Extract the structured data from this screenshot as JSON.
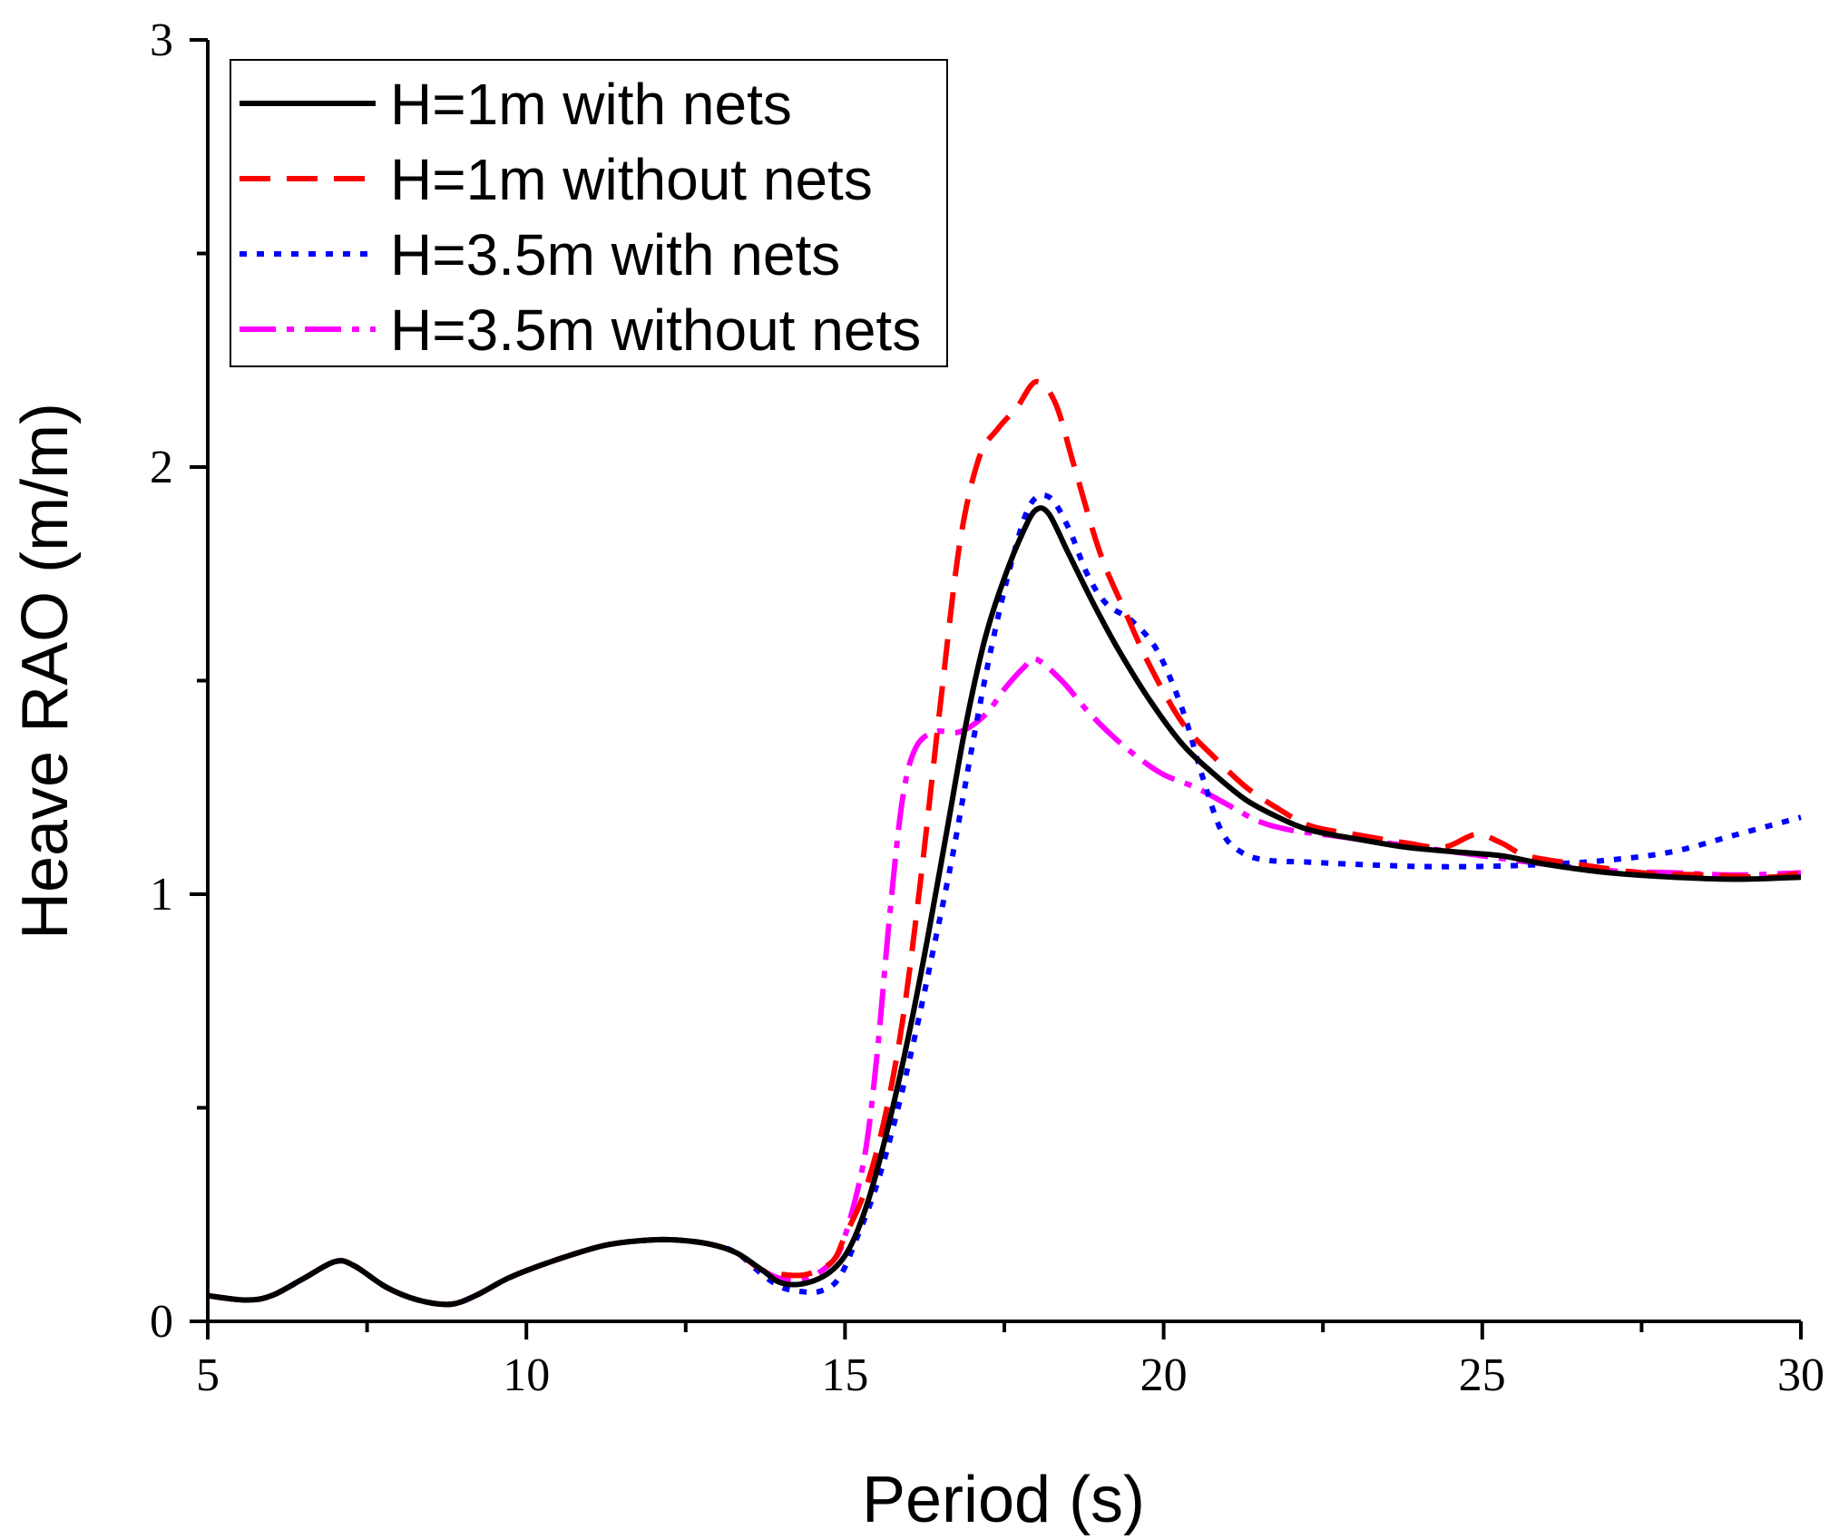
{
  "chart_data": {
    "type": "line",
    "title": "",
    "xlabel": "Period (s)",
    "ylabel": "Heave RAO (m/m)",
    "xlim": [
      5,
      30
    ],
    "ylim": [
      0,
      3
    ],
    "xticks": [
      5,
      10,
      15,
      20,
      25,
      30
    ],
    "yticks": [
      0,
      1,
      2,
      3
    ],
    "legend_position": "top-left",
    "grid": false,
    "series": [
      {
        "name": "H=1m with nets",
        "color": "#000000",
        "style": "solid",
        "x": [
          5,
          5.6,
          6.0,
          6.5,
          7.0,
          7.3,
          7.8,
          8.3,
          8.8,
          9.2,
          9.7,
          10.2,
          10.8,
          11.3,
          11.9,
          12.4,
          12.9,
          13.3,
          13.7,
          14.0,
          14.4,
          14.8,
          15.1,
          15.4,
          15.7,
          16.0,
          16.3,
          16.6,
          16.9,
          17.2,
          17.5,
          17.8,
          18.0,
          18.2,
          18.5,
          18.9,
          19.3,
          19.8,
          20.3,
          20.8,
          21.3,
          21.8,
          22.3,
          23.0,
          23.8,
          24.5,
          25.3,
          26.0,
          27.0,
          28.0,
          29.0,
          30.0
        ],
        "y": [
          0.06,
          0.05,
          0.06,
          0.1,
          0.14,
          0.13,
          0.08,
          0.05,
          0.04,
          0.06,
          0.1,
          0.13,
          0.16,
          0.18,
          0.19,
          0.19,
          0.18,
          0.16,
          0.12,
          0.09,
          0.09,
          0.12,
          0.18,
          0.3,
          0.47,
          0.67,
          0.9,
          1.15,
          1.4,
          1.6,
          1.74,
          1.85,
          1.9,
          1.89,
          1.8,
          1.68,
          1.57,
          1.45,
          1.35,
          1.28,
          1.22,
          1.18,
          1.15,
          1.13,
          1.11,
          1.1,
          1.09,
          1.07,
          1.05,
          1.04,
          1.035,
          1.04
        ]
      },
      {
        "name": "H=1m without nets",
        "color": "#ff0000",
        "style": "dashed",
        "x": [
          5,
          5.6,
          6.0,
          6.5,
          7.0,
          7.3,
          7.8,
          8.3,
          8.8,
          9.2,
          9.7,
          10.2,
          10.8,
          11.3,
          11.9,
          12.4,
          12.9,
          13.3,
          13.7,
          14.0,
          14.4,
          14.8,
          15.0,
          15.3,
          15.6,
          15.9,
          16.2,
          16.5,
          16.8,
          17.1,
          17.4,
          17.7,
          18.0,
          18.3,
          18.6,
          19.0,
          19.4,
          19.8,
          20.3,
          20.8,
          21.3,
          21.8,
          22.3,
          23.0,
          23.8,
          24.4,
          24.9,
          25.3,
          25.7,
          26.5,
          27.5,
          28.5,
          29.5,
          30.0
        ],
        "y": [
          0.06,
          0.05,
          0.06,
          0.1,
          0.14,
          0.13,
          0.08,
          0.05,
          0.04,
          0.06,
          0.1,
          0.13,
          0.16,
          0.18,
          0.19,
          0.19,
          0.18,
          0.16,
          0.12,
          0.11,
          0.11,
          0.14,
          0.2,
          0.3,
          0.46,
          0.7,
          1.05,
          1.45,
          1.82,
          2.02,
          2.09,
          2.14,
          2.2,
          2.15,
          2.0,
          1.8,
          1.66,
          1.53,
          1.4,
          1.32,
          1.25,
          1.2,
          1.16,
          1.14,
          1.12,
          1.11,
          1.14,
          1.12,
          1.09,
          1.07,
          1.05,
          1.045,
          1.04,
          1.05
        ]
      },
      {
        "name": "H=3.5m with nets",
        "color": "#0000ff",
        "style": "dotted",
        "x": [
          5,
          5.6,
          6.0,
          6.5,
          7.0,
          7.3,
          7.8,
          8.3,
          8.8,
          9.2,
          9.7,
          10.2,
          10.8,
          11.3,
          11.9,
          12.4,
          12.9,
          13.3,
          13.7,
          14.0,
          14.3,
          14.6,
          14.9,
          15.2,
          15.5,
          15.8,
          16.1,
          16.4,
          16.7,
          17.0,
          17.3,
          17.6,
          17.9,
          18.2,
          18.5,
          18.8,
          19.1,
          19.5,
          19.9,
          20.3,
          20.6,
          20.9,
          21.2,
          21.6,
          22.3,
          23.0,
          24.0,
          25.0,
          26.0,
          27.0,
          28.0,
          29.0,
          30.0
        ],
        "y": [
          0.06,
          0.05,
          0.06,
          0.1,
          0.14,
          0.13,
          0.08,
          0.05,
          0.04,
          0.06,
          0.1,
          0.13,
          0.16,
          0.18,
          0.19,
          0.19,
          0.18,
          0.16,
          0.11,
          0.08,
          0.07,
          0.07,
          0.1,
          0.2,
          0.32,
          0.48,
          0.67,
          0.88,
          1.1,
          1.35,
          1.58,
          1.77,
          1.91,
          1.93,
          1.86,
          1.75,
          1.68,
          1.64,
          1.57,
          1.43,
          1.28,
          1.15,
          1.1,
          1.08,
          1.075,
          1.07,
          1.065,
          1.065,
          1.07,
          1.08,
          1.1,
          1.14,
          1.18
        ]
      },
      {
        "name": "H=3.5m without nets",
        "color": "#ff00ff",
        "style": "dashdot",
        "x": [
          5,
          5.6,
          6.0,
          6.5,
          7.0,
          7.3,
          7.8,
          8.3,
          8.8,
          9.2,
          9.7,
          10.2,
          10.8,
          11.3,
          11.9,
          12.4,
          12.9,
          13.3,
          13.7,
          14.0,
          14.4,
          14.8,
          15.0,
          15.3,
          15.5,
          15.7,
          15.9,
          16.1,
          16.4,
          16.8,
          17.2,
          17.5,
          17.8,
          18.0,
          18.4,
          18.8,
          19.2,
          19.6,
          20.0,
          20.5,
          21.0,
          21.5,
          22.0,
          22.5,
          23.0,
          24.0,
          25.0,
          26.0,
          27.0,
          28.0,
          29.0,
          30.0
        ],
        "y": [
          0.06,
          0.05,
          0.06,
          0.1,
          0.14,
          0.13,
          0.08,
          0.05,
          0.04,
          0.06,
          0.1,
          0.13,
          0.16,
          0.18,
          0.19,
          0.19,
          0.18,
          0.16,
          0.12,
          0.1,
          0.1,
          0.14,
          0.2,
          0.38,
          0.62,
          0.95,
          1.22,
          1.34,
          1.38,
          1.38,
          1.42,
          1.48,
          1.53,
          1.55,
          1.5,
          1.43,
          1.37,
          1.32,
          1.28,
          1.25,
          1.21,
          1.17,
          1.15,
          1.14,
          1.13,
          1.11,
          1.09,
          1.07,
          1.055,
          1.05,
          1.045,
          1.05
        ]
      }
    ]
  }
}
